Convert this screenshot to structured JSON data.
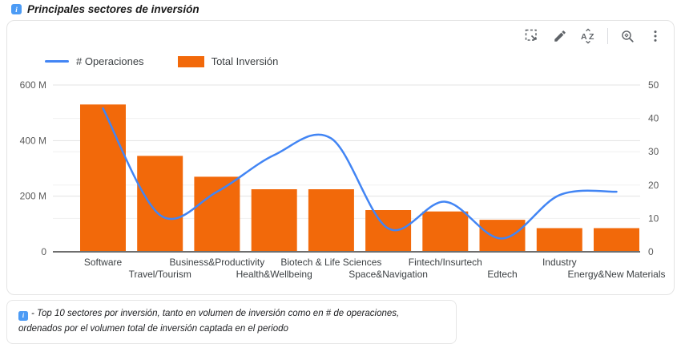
{
  "header": {
    "title": "Principales sectores de inversión",
    "info_glyph": "i"
  },
  "toolbar": {
    "icons": [
      "marquee-select",
      "edit-pencil",
      "sort-alpha",
      "zoom",
      "more-options"
    ]
  },
  "legend": {
    "items": [
      {
        "label": "# Operaciones",
        "type": "line",
        "color": "#4285f4"
      },
      {
        "label": "Total Inversión",
        "type": "bar",
        "color": "#f2690a"
      }
    ]
  },
  "chart_data": {
    "type": "combo-bar-line",
    "categories": [
      "Software",
      "Travel/Tourism",
      "Business&Productivity",
      "Health&Wellbeing",
      "Biotech & Life Sciences",
      "Space&Navigation",
      "Fintech/Insurtech",
      "Edtech",
      "Industry",
      "Energy&New Materials"
    ],
    "series": [
      {
        "name": "Total Inversión",
        "type": "bar",
        "axis": "left",
        "color": "#f2690a",
        "unit": "millions",
        "values": [
          530,
          345,
          270,
          225,
          225,
          150,
          145,
          115,
          85,
          85
        ]
      },
      {
        "name": "# Operaciones",
        "type": "line",
        "axis": "right",
        "color": "#4285f4",
        "values": [
          43,
          11,
          18,
          29,
          34,
          7,
          15,
          4,
          17,
          18
        ]
      }
    ],
    "left_axis": {
      "tick_values": [
        0,
        200,
        400,
        600
      ],
      "tick_labels": [
        "0",
        "200 M",
        "400 M",
        "600 M"
      ],
      "min": 0,
      "max": 600
    },
    "right_axis": {
      "tick_values": [
        0,
        10,
        20,
        30,
        40,
        50
      ],
      "tick_labels": [
        "0",
        "10",
        "20",
        "30",
        "40",
        "50"
      ],
      "min": 0,
      "max": 50
    },
    "grid": true,
    "legend_position": "top-left"
  },
  "footer": {
    "note": "- Top 10 sectores por inversión, tanto en volumen de inversión como en # de operaciones, ordenados por el volumen total de inversión captada en el periodo",
    "info_glyph": "i"
  }
}
